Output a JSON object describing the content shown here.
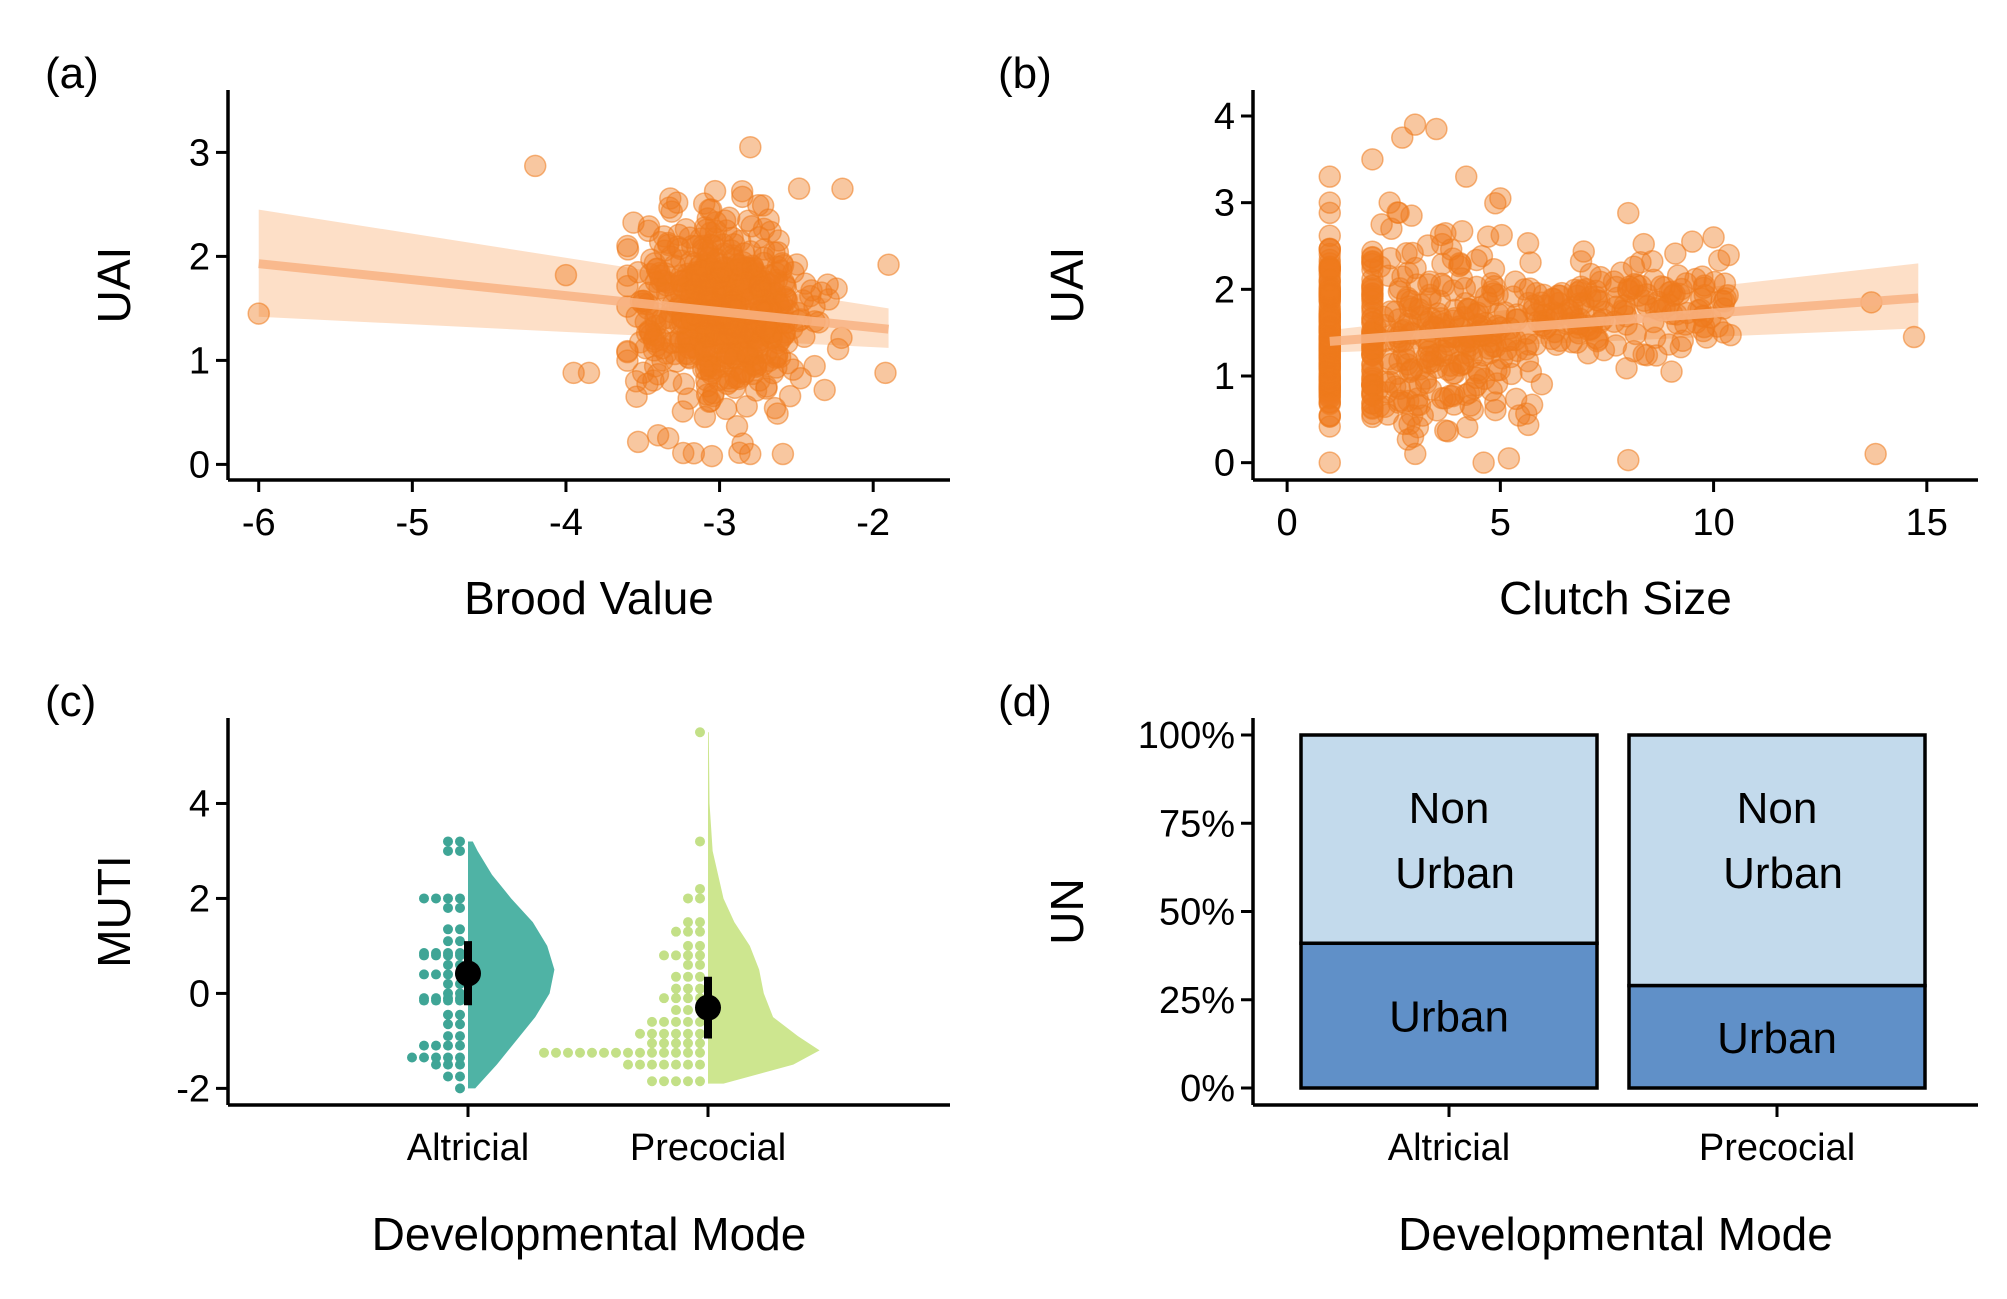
{
  "colors": {
    "orange": "#EE7A1C",
    "orange_band": "#FDDCC1",
    "orange_line": "#F8B383",
    "teal": "#4FB3A5",
    "teal_dot": "#3FA596",
    "lime": "#CDE68F",
    "lime_dot": "#C3E087",
    "non_urban": "#C3DAEC",
    "urban": "#6090C8"
  },
  "chart_data": [
    {
      "panel_label": "(a)",
      "type": "scatter",
      "xlabel": "Brood Value",
      "ylabel": "UAI",
      "xlim": [
        -6.2,
        -1.5
      ],
      "ylim": [
        -0.15,
        3.6
      ],
      "xticks": [
        -6,
        -5,
        -4,
        -3,
        -2
      ],
      "xtick_labels": [
        "-6",
        "-5",
        "-4",
        "-3",
        "-2"
      ],
      "yticks": [
        0,
        1,
        2,
        3
      ],
      "ytick_labels": [
        "0",
        "1",
        "2",
        "3"
      ],
      "fit": {
        "x": [
          -6,
          -1.9
        ],
        "y": [
          1.93,
          1.3
        ],
        "band_lower": [
          1.42,
          1.12
        ],
        "band_upper": [
          2.45,
          1.5
        ]
      },
      "notable_points": [
        {
          "x": -6.0,
          "y": 1.45
        },
        {
          "x": -4.2,
          "y": 2.87
        },
        {
          "x": -3.95,
          "y": 0.88
        },
        {
          "x": -3.85,
          "y": 0.88
        },
        {
          "x": -2.2,
          "y": 2.65
        },
        {
          "x": -1.9,
          "y": 1.92
        },
        {
          "x": -1.92,
          "y": 0.88
        },
        {
          "x": -2.8,
          "y": 3.05
        },
        {
          "x": -3.05,
          "y": 0.08
        },
        {
          "x": -2.85,
          "y": 0.2
        },
        {
          "x": -3.4,
          "y": 0.28
        },
        {
          "x": -4.0,
          "y": 1.82
        }
      ],
      "cloud": {
        "x_center": -3.0,
        "x_sd": 0.28,
        "y_center": 1.5,
        "y_sd": 0.45,
        "n": 560
      }
    },
    {
      "panel_label": "(b)",
      "type": "scatter",
      "xlabel": "Clutch Size",
      "ylabel": "UAI",
      "xlim": [
        -0.8,
        16.2
      ],
      "ylim": [
        -0.2,
        4.3
      ],
      "xticks": [
        0,
        5,
        10,
        15
      ],
      "xtick_labels": [
        "0",
        "5",
        "10",
        "15"
      ],
      "yticks": [
        0,
        1,
        2,
        3,
        4
      ],
      "ytick_labels": [
        "0",
        "1",
        "2",
        "3",
        "4"
      ],
      "fit": {
        "x": [
          1,
          14.8
        ],
        "y": [
          1.4,
          1.9
        ],
        "band_lower": [
          1.27,
          1.55
        ],
        "band_upper": [
          1.53,
          2.3
        ]
      },
      "notable_points": [
        {
          "x": 3.0,
          "y": 3.9
        },
        {
          "x": 2.7,
          "y": 3.75
        },
        {
          "x": 3.5,
          "y": 3.85
        },
        {
          "x": 2.0,
          "y": 3.5
        },
        {
          "x": 4.2,
          "y": 3.3
        },
        {
          "x": 1.0,
          "y": 3.3
        },
        {
          "x": 5.0,
          "y": 3.05
        },
        {
          "x": 8.0,
          "y": 2.88
        },
        {
          "x": 9.5,
          "y": 2.55
        },
        {
          "x": 10.0,
          "y": 2.6
        },
        {
          "x": 13.7,
          "y": 1.85
        },
        {
          "x": 14.7,
          "y": 1.45
        },
        {
          "x": 13.8,
          "y": 0.1
        },
        {
          "x": 8.0,
          "y": 0.03
        },
        {
          "x": 5.2,
          "y": 0.05
        }
      ],
      "cloud": {
        "x_values": [
          1,
          2,
          2.5,
          3,
          3.5,
          4,
          4.5,
          5,
          6,
          7,
          8,
          9,
          10
        ],
        "y_center": 1.5,
        "y_sd": 0.55,
        "n": 620
      }
    },
    {
      "panel_label": "(c)",
      "type": "raincloud",
      "xlabel": "Developmental Mode",
      "ylabel": "MUTI",
      "ylim": [
        -2.35,
        5.8
      ],
      "yticks": [
        -2,
        0,
        2,
        4
      ],
      "ytick_labels": [
        "-2",
        "0",
        "2",
        "4"
      ],
      "categories": [
        "Altricial",
        "Precocial"
      ],
      "series": [
        {
          "category": "Altricial",
          "mean": 0.42,
          "ci": [
            -0.25,
            1.1
          ],
          "min": -2.0,
          "max": 3.2,
          "density": [
            [
              -2.0,
              0.03
            ],
            [
              -1.5,
              0.12
            ],
            [
              -1.0,
              0.2
            ],
            [
              -0.5,
              0.28
            ],
            [
              0.0,
              0.34
            ],
            [
              0.5,
              0.36
            ],
            [
              1.0,
              0.33
            ],
            [
              1.5,
              0.27
            ],
            [
              2.0,
              0.18
            ],
            [
              2.5,
              0.1
            ],
            [
              3.0,
              0.04
            ],
            [
              3.2,
              0.02
            ]
          ],
          "dot_rows": [
            [
              3.2,
              2
            ],
            [
              3.0,
              2
            ],
            [
              2.0,
              4
            ],
            [
              1.8,
              2
            ],
            [
              1.35,
              2
            ],
            [
              1.1,
              2
            ],
            [
              0.85,
              4
            ],
            [
              0.8,
              4
            ],
            [
              0.6,
              2
            ],
            [
              0.4,
              4
            ],
            [
              0.2,
              2
            ],
            [
              0.0,
              2
            ],
            [
              -0.1,
              4
            ],
            [
              -0.15,
              4
            ],
            [
              -0.45,
              2
            ],
            [
              -0.65,
              2
            ],
            [
              -0.9,
              2
            ],
            [
              -1.1,
              4
            ],
            [
              -1.35,
              5
            ],
            [
              -1.5,
              3
            ],
            [
              -1.75,
              2
            ],
            [
              -2.0,
              1
            ]
          ]
        },
        {
          "category": "Precocial",
          "mean": -0.3,
          "ci": [
            -0.95,
            0.35
          ],
          "min": -1.9,
          "max": 5.5,
          "density": [
            [
              -1.9,
              0.1
            ],
            [
              -1.5,
              0.55
            ],
            [
              -1.2,
              0.72
            ],
            [
              -0.9,
              0.58
            ],
            [
              -0.5,
              0.42
            ],
            [
              0.0,
              0.36
            ],
            [
              0.5,
              0.33
            ],
            [
              1.0,
              0.27
            ],
            [
              1.5,
              0.17
            ],
            [
              2.0,
              0.1
            ],
            [
              3.0,
              0.03
            ],
            [
              4.0,
              0.01
            ],
            [
              5.5,
              0.005
            ]
          ],
          "dot_rows": [
            [
              5.5,
              1
            ],
            [
              3.2,
              1
            ],
            [
              2.2,
              1
            ],
            [
              2.0,
              2
            ],
            [
              1.5,
              2
            ],
            [
              1.3,
              3
            ],
            [
              1.0,
              2
            ],
            [
              0.8,
              4
            ],
            [
              0.6,
              2
            ],
            [
              0.35,
              3
            ],
            [
              0.1,
              3
            ],
            [
              -0.1,
              4
            ],
            [
              -0.35,
              3
            ],
            [
              -0.6,
              5
            ],
            [
              -0.85,
              6
            ],
            [
              -1.05,
              5
            ],
            [
              -1.25,
              14
            ],
            [
              -1.5,
              7
            ],
            [
              -1.85,
              5
            ]
          ]
        }
      ]
    },
    {
      "panel_label": "(d)",
      "type": "bar",
      "stacked": true,
      "xlabel": "Developmental Mode",
      "ylabel": "UN",
      "ylim": [
        0,
        1.0
      ],
      "yticks": [
        0,
        0.25,
        0.5,
        0.75,
        1.0
      ],
      "ytick_labels": [
        "0%",
        "25%",
        "50%",
        "75%",
        "100%"
      ],
      "categories": [
        "Altricial",
        "Precocial"
      ],
      "series": [
        {
          "name": "Urban",
          "values": [
            0.41,
            0.29
          ]
        },
        {
          "name": "Non Urban",
          "values": [
            0.59,
            0.71
          ]
        }
      ],
      "bar_labels": {
        "urban": "Urban",
        "non_urban_line1": "Non",
        "non_urban_line2": "Urban"
      }
    }
  ]
}
